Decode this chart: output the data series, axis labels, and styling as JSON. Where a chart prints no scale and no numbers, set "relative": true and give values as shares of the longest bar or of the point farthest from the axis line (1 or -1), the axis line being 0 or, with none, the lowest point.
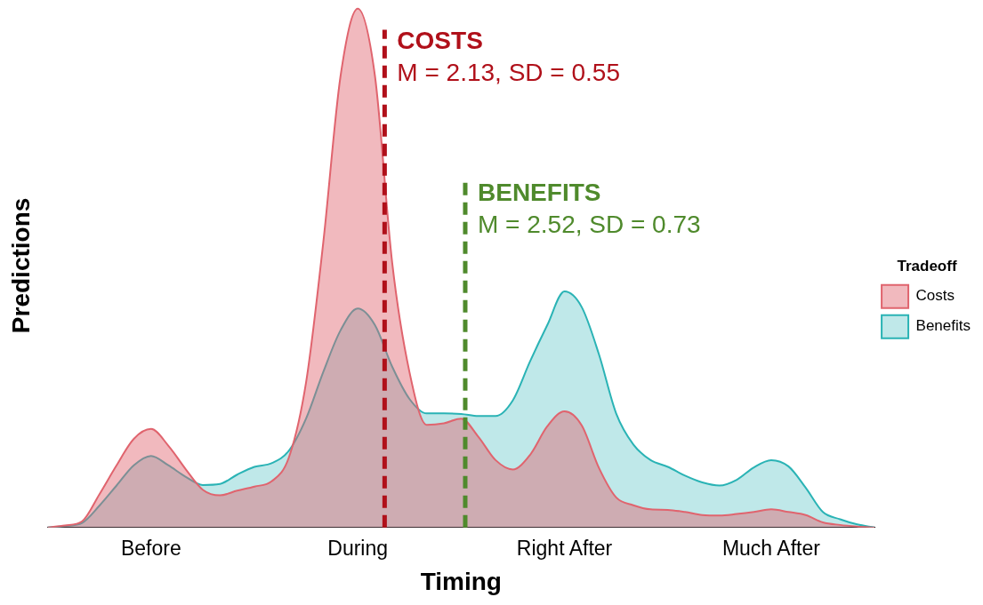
{
  "chart_data": {
    "type": "area",
    "relative": true,
    "xlabel": "Timing",
    "ylabel": "Predictions",
    "legend_title": "Tradeoff",
    "legend": "right",
    "grid": false,
    "tick_labels": "x",
    "marker": "none",
    "categories": [
      null,
      null,
      null,
      null,
      null,
      null,
      "Before",
      null,
      null,
      null,
      null,
      null,
      null,
      null,
      null,
      null,
      null,
      null,
      "During",
      null,
      null,
      null,
      null,
      null,
      null,
      null,
      null,
      null,
      null,
      null,
      "Right After",
      null,
      null,
      null,
      null,
      null,
      null,
      null,
      null,
      null,
      null,
      null,
      "Much After",
      null,
      null,
      null,
      null,
      null,
      null
    ],
    "series": [
      {
        "name": "Costs",
        "color": "#e0646e",
        "values": [
          0,
          0.004,
          0.012,
          0.064,
          0.12,
          0.171,
          0.19,
          0.158,
          0.113,
          0.073,
          0.062,
          0.071,
          0.079,
          0.089,
          0.135,
          0.28,
          0.55,
          0.87,
          1.0,
          0.87,
          0.51,
          0.3,
          0.198,
          0.201,
          0.21,
          0.175,
          0.13,
          0.112,
          0.14,
          0.195,
          0.224,
          0.197,
          0.115,
          0.058,
          0.043,
          0.035,
          0.034,
          0.03,
          0.024,
          0.023,
          0.026,
          0.03,
          0.035,
          0.03,
          0.024,
          0.01,
          0.005,
          0.002,
          0
        ]
      },
      {
        "name": "Benefits",
        "color": "#2ab3b5",
        "values": [
          0,
          0.003,
          0.009,
          0.042,
          0.081,
          0.12,
          0.138,
          0.12,
          0.098,
          0.082,
          0.084,
          0.102,
          0.117,
          0.124,
          0.148,
          0.21,
          0.3,
          0.38,
          0.422,
          0.39,
          0.31,
          0.248,
          0.22,
          0.22,
          0.219,
          0.215,
          0.215,
          0.245,
          0.32,
          0.39,
          0.455,
          0.425,
          0.334,
          0.22,
          0.16,
          0.13,
          0.117,
          0.1,
          0.087,
          0.081,
          0.092,
          0.116,
          0.13,
          0.118,
          0.077,
          0.03,
          0.016,
          0.006,
          0
        ]
      }
    ],
    "annotations": [
      "COSTS",
      "M = 2.13, SD = 0.55",
      "BENEFITS",
      "M = 2.52, SD = 0.73"
    ]
  }
}
